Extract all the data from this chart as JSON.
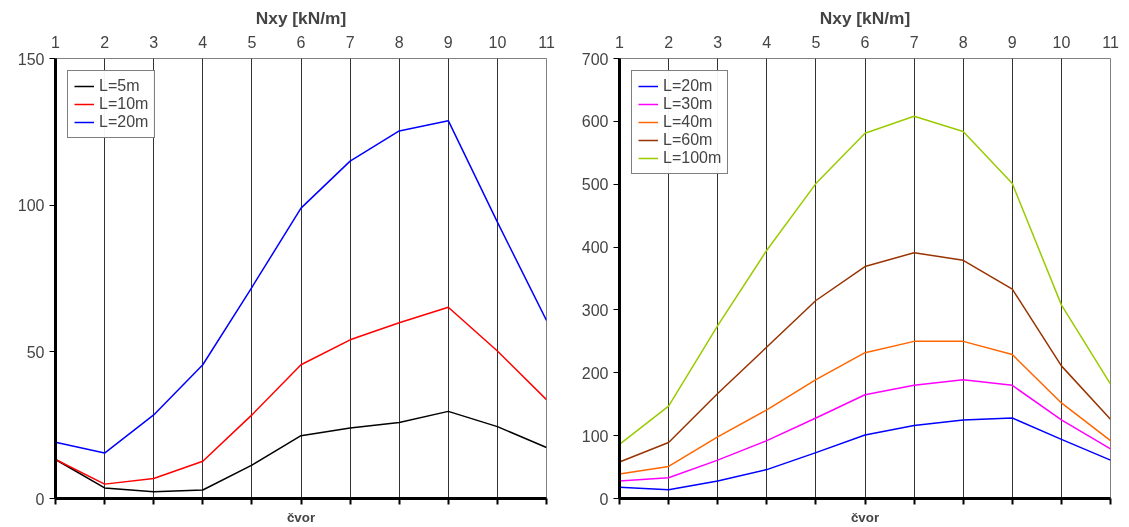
{
  "chart_data": [
    {
      "type": "line",
      "title": "Nxy [kN/m]",
      "xlabel": "čvor",
      "categories": [
        "1",
        "2",
        "3",
        "4",
        "5",
        "6",
        "7",
        "8",
        "9",
        "10",
        "11"
      ],
      "ylim": [
        0,
        150
      ],
      "yticks": [
        0,
        50,
        100,
        150
      ],
      "grid": "x",
      "legend": "top left",
      "series": [
        {
          "name": "L=5m",
          "color": "#000000",
          "values": [
            13.3,
            3.6,
            2.3,
            2.9,
            11.4,
            21.4,
            24,
            25.9,
            29.7,
            24.5,
            17.4
          ]
        },
        {
          "name": "L=10m",
          "color": "#ff0000",
          "values": [
            13.3,
            4.9,
            6.8,
            12.7,
            28.5,
            45.6,
            54.1,
            59.9,
            65.2,
            50.3,
            33.7
          ]
        },
        {
          "name": "L=20m",
          "color": "#0000ff",
          "values": [
            19.2,
            15.5,
            28.5,
            45.6,
            72,
            99,
            115,
            125.3,
            128.8,
            94.2,
            60.7
          ]
        }
      ]
    },
    {
      "type": "line",
      "title": "Nxy [kN/m]",
      "xlabel": "čvor",
      "categories": [
        "1",
        "2",
        "3",
        "4",
        "5",
        "6",
        "7",
        "8",
        "9",
        "10",
        "11"
      ],
      "ylim": [
        0,
        700
      ],
      "yticks": [
        0,
        100,
        200,
        300,
        400,
        500,
        600,
        700
      ],
      "grid": "x",
      "legend": "top left",
      "series": [
        {
          "name": "L=20m",
          "color": "#0000ff",
          "values": [
            18,
            14,
            28,
            46,
            73,
            101,
            116,
            125,
            128,
            94,
            61
          ]
        },
        {
          "name": "L=30m",
          "color": "#ff00ff",
          "values": [
            28,
            33,
            61,
            92,
            128,
            165,
            180,
            189,
            180,
            125,
            79
          ]
        },
        {
          "name": "L=40m",
          "color": "#ff6600",
          "values": [
            39,
            51,
            98,
            141,
            189,
            232,
            250,
            250,
            229,
            152,
            92
          ]
        },
        {
          "name": "L=60m",
          "color": "#993300",
          "values": [
            58,
            89,
            167,
            241,
            315,
            369,
            391,
            379,
            333,
            211,
            126
          ]
        },
        {
          "name": "L=100m",
          "color": "#99cc00",
          "values": [
            86,
            147,
            275,
            395,
            501,
            581,
            608,
            584,
            501,
            308,
            182
          ]
        }
      ]
    }
  ]
}
